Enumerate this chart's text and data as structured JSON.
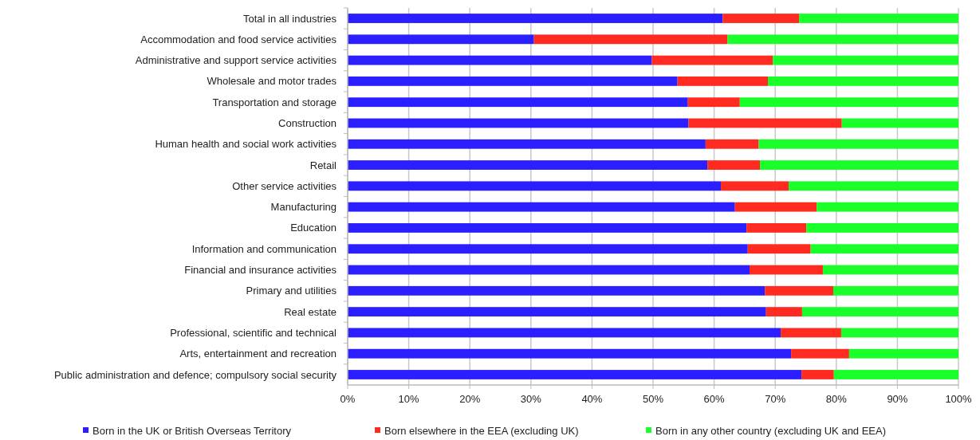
{
  "chart_data": {
    "type": "bar",
    "orientation": "horizontal",
    "stacked": true,
    "categories": [
      "Total in all industries",
      "Accommodation and food service activities",
      "Administrative and support service activities",
      "Wholesale and motor trades",
      "Transportation and storage",
      "Construction",
      "Human health and social work activities",
      "Retail",
      "Other service activities",
      "Manufacturing",
      "Education",
      "Information and communication",
      "Financial and insurance activities",
      "Primary and utilities",
      "Real estate",
      "Professional, scientific and technical",
      "Arts, entertainment and recreation",
      "Public administration and defence; compulsory social security"
    ],
    "series": [
      {
        "name": "Born in the UK or British Overseas Territory",
        "color": "#2b1fff",
        "values": [
          61.4,
          30.5,
          49.8,
          54.0,
          55.7,
          55.8,
          58.6,
          58.9,
          61.1,
          63.4,
          65.3,
          65.5,
          65.8,
          68.3,
          68.5,
          70.9,
          72.6,
          74.3
        ]
      },
      {
        "name": "Born elsewhere in the EEA (excluding UK)",
        "color": "#ff2a20",
        "values": [
          12.5,
          31.7,
          19.8,
          14.8,
          8.5,
          25.1,
          8.7,
          8.6,
          11.1,
          13.4,
          9.8,
          10.3,
          12.0,
          11.2,
          5.9,
          9.9,
          9.5,
          5.3
        ]
      },
      {
        "name": "Born in any other country (excluding UK and EEA)",
        "color": "#1aff2a",
        "values": [
          26.1,
          37.8,
          30.4,
          31.2,
          35.8,
          19.1,
          32.7,
          32.5,
          27.8,
          23.2,
          24.9,
          24.2,
          22.2,
          20.5,
          25.6,
          19.2,
          17.9,
          20.4
        ]
      }
    ],
    "xlim": [
      0,
      100
    ],
    "xticks": [
      {
        "value": 0,
        "label": "0%"
      },
      {
        "value": 10,
        "label": "10%"
      },
      {
        "value": 20,
        "label": "20%"
      },
      {
        "value": 30,
        "label": "30%"
      },
      {
        "value": 40,
        "label": "40%"
      },
      {
        "value": 50,
        "label": "50%"
      },
      {
        "value": 60,
        "label": "60%"
      },
      {
        "value": 70,
        "label": "70%"
      },
      {
        "value": 80,
        "label": "80%"
      },
      {
        "value": 90,
        "label": "90%"
      },
      {
        "value": 100,
        "label": "100%"
      }
    ],
    "grid": "x",
    "legend": "bottom"
  }
}
